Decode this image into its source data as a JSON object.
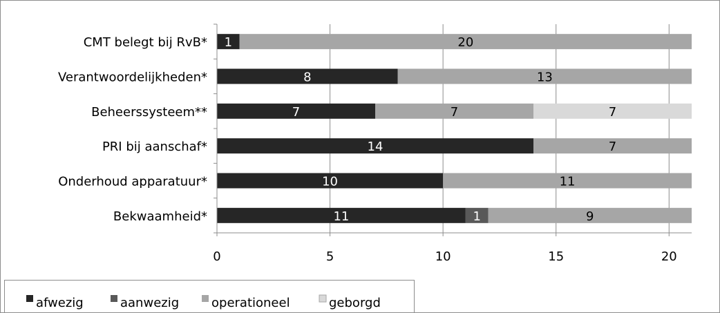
{
  "chart_data": {
    "type": "bar",
    "orientation": "horizontal",
    "stacked": true,
    "categories": [
      "CMT belegt bij RvB*",
      "Verantwoordelijkheden*",
      "Beheerssysteem**",
      "PRI bij aanschaf*",
      "Onderhoud apparatuur*",
      "Bekwaamheid*"
    ],
    "series": [
      {
        "name": "afwezig",
        "color": "#262626",
        "values": [
          1,
          8,
          7,
          14,
          10,
          11
        ],
        "label_color": "#ffffff"
      },
      {
        "name": "aanwezig",
        "color": "#595959",
        "values": [
          0,
          0,
          0,
          0,
          0,
          1
        ],
        "label_color": "#ffffff"
      },
      {
        "name": "operationeel",
        "color": "#a6a6a6",
        "values": [
          20,
          13,
          7,
          7,
          11,
          9
        ],
        "label_color": "#000000"
      },
      {
        "name": "geborgd",
        "color": "#d9d9d9",
        "values": [
          0,
          0,
          7,
          0,
          0,
          0
        ],
        "label_color": "#000000"
      }
    ],
    "xlim": [
      0,
      21
    ],
    "xticks": [
      0,
      5,
      10,
      15,
      20
    ],
    "grid": true,
    "legend_position": "bottom-left",
    "title": "",
    "xlabel": "",
    "ylabel": ""
  }
}
